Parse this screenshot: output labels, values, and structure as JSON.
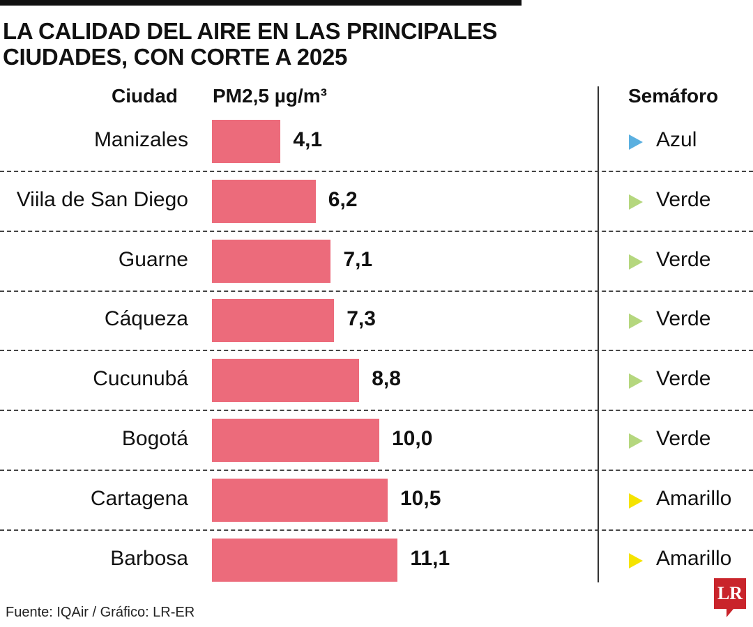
{
  "title_lines": [
    "LA CALIDAD DEL AIRE EN LAS PRINCIPALES",
    "CIUDADES, CON CORTE A 2025"
  ],
  "chart_data": {
    "type": "bar",
    "orientation": "horizontal",
    "title": "LA CALIDAD DEL AIRE EN LAS PRINCIPALES CIUDADES, CON CORTE A 2025",
    "columns": {
      "city": "Ciudad",
      "value": "PM2,5 µg/m³",
      "status": "Semáforo"
    },
    "categories": [
      "Manizales",
      "Viila de San Diego",
      "Guarne",
      "Cáqueza",
      "Cucunubá",
      "Bogotá",
      "Cartagena",
      "Barbosa"
    ],
    "values": [
      4.1,
      6.2,
      7.1,
      7.3,
      8.8,
      10.0,
      10.5,
      11.1
    ],
    "value_labels": [
      "4,1",
      "6,2",
      "7,1",
      "7,3",
      "8,8",
      "10,0",
      "10,5",
      "11,1"
    ],
    "semaforo": [
      "Azul",
      "Verde",
      "Verde",
      "Verde",
      "Verde",
      "Verde",
      "Amarillo",
      "Amarillo"
    ],
    "semaforo_colors": {
      "Azul": "#5bb0e0",
      "Verde": "#b5d77e",
      "Amarillo": "#f5e300"
    },
    "bar_color": "#ec6b7b"
  },
  "source": "Fuente: IQAir / Gráfico: LR-ER",
  "logo": "LR"
}
